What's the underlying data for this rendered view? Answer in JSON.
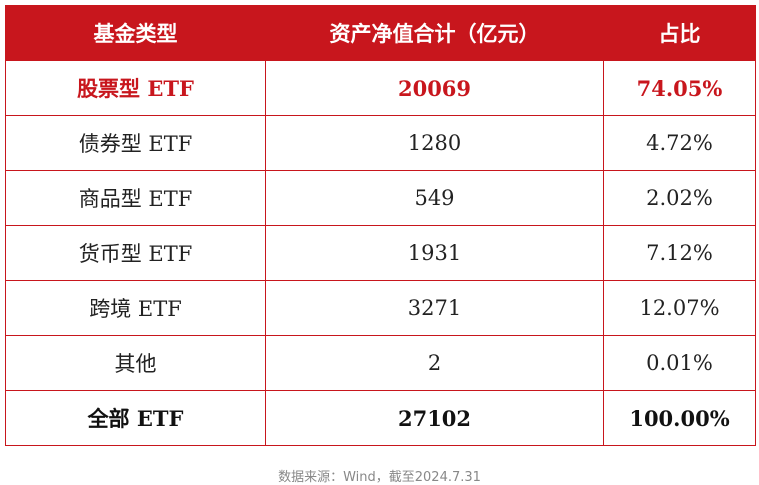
{
  "table": {
    "header": [
      "基金类型",
      "资产净值合计（亿元）",
      "占比"
    ],
    "rows": [
      [
        "股票型 ETF",
        "20069",
        "74.05%"
      ],
      [
        "债券型 ETF",
        "1280",
        "4.72%"
      ],
      [
        "商品型 ETF",
        "549",
        "2.02%"
      ],
      [
        "货币型 ETF",
        "1931",
        "7.12%"
      ],
      [
        "跨境 ETF",
        "3271",
        "12.07%"
      ],
      [
        "其他",
        "2",
        "0.01%"
      ],
      [
        "全部 ETF",
        "27102",
        "100.00%"
      ]
    ]
  },
  "source": "数据来源：Wind，截至2024.7.31"
}
